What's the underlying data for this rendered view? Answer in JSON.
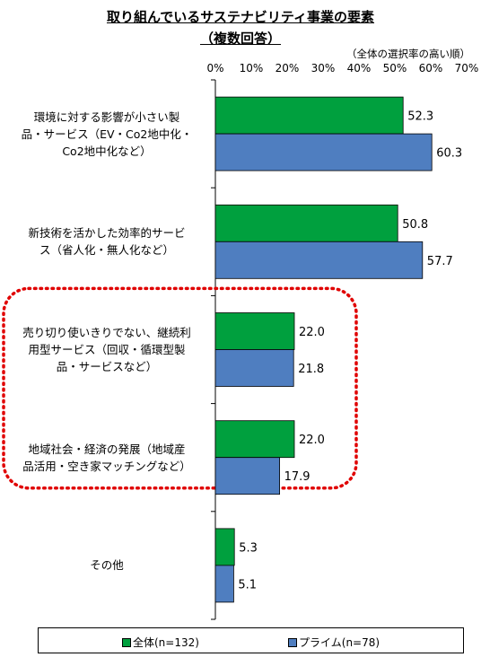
{
  "chart_data": {
    "type": "bar",
    "orientation": "horizontal",
    "title": "取り組んでいるサステナビリティ事業の要素",
    "subtitle": "（複数回答）",
    "note": "（全体の選択率の高い順）",
    "xlim": [
      0,
      70
    ],
    "x_ticks": [
      "0%",
      "10%",
      "20%",
      "30%",
      "40%",
      "50%",
      "60%",
      "70%"
    ],
    "categories": [
      [
        "環境に対する影響が小さい製",
        "品・サービス（EV・Co2地中化・",
        "Co2地中化など）"
      ],
      [
        "新技術を活かした効率的サービ",
        "ス（省人化・無人化など）"
      ],
      [
        "売り切り使いきりでない、継続利",
        "用型サービス（回収・循環型製",
        "品・サービスなど）"
      ],
      [
        "地域社会・経済の発展（地域産",
        "品活用・空き家マッチングなど）"
      ],
      [
        "その他"
      ]
    ],
    "series": [
      {
        "name": "全体(n=132)",
        "color": "#00a03e",
        "values": [
          52.3,
          50.8,
          22.0,
          22.0,
          5.3
        ]
      },
      {
        "name": "プライム(n=78)",
        "color": "#4f7ec0",
        "values": [
          60.3,
          57.7,
          21.8,
          17.9,
          5.1
        ]
      }
    ],
    "value_labels": [
      [
        "52.3",
        "50.8",
        "22.0",
        "22.0",
        "5.3"
      ],
      [
        "60.3",
        "57.7",
        "21.8",
        "17.9",
        "5.1"
      ]
    ],
    "legend_position": "bottom",
    "highlight": {
      "categories": [
        2,
        3
      ],
      "style": "dotted",
      "color": "#e00000"
    }
  }
}
